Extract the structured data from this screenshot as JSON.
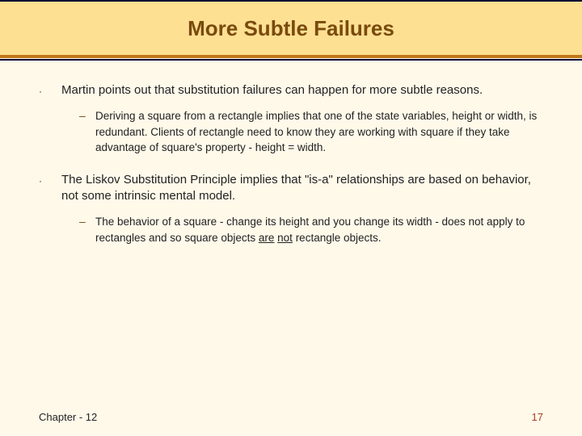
{
  "colors": {
    "background": "#fff9ea",
    "band_fill": "#fde092",
    "band_border_top": "#000033",
    "band_border_bottom_inner": "#c07818",
    "band_border_bottom_outer": "#000033",
    "title_color": "#7a4a0e",
    "sub_marker_color": "#7a4a0e",
    "page_num_color": "#a84020",
    "body_text": "#222222"
  },
  "typography": {
    "title_fontsize": 26,
    "bullet_fontsize": 15,
    "sub_fontsize": 13.5,
    "footer_fontsize": 13,
    "font_family": "Verdana"
  },
  "title": "More Subtle Failures",
  "bullets": [
    {
      "text": "Martin points out that substitution failures can happen for more subtle reasons.",
      "sub": "Deriving a square from a rectangle implies that one of the state variables, height or width, is redundant.  Clients of rectangle need to know they are working with square if they take advantage of square's property - height = width."
    },
    {
      "text": "The Liskov Substitution Principle implies that \"is-a\" relationships are based on behavior, not some intrinsic mental model.",
      "sub_prefix": "The behavior of a square - change its height and you change its width - does not apply to rectangles and so square objects ",
      "sub_underlined1": "are",
      "sub_mid": " ",
      "sub_underlined2": "not",
      "sub_suffix": " rectangle objects."
    }
  ],
  "footer": {
    "chapter": "Chapter - 12",
    "page": "17"
  }
}
